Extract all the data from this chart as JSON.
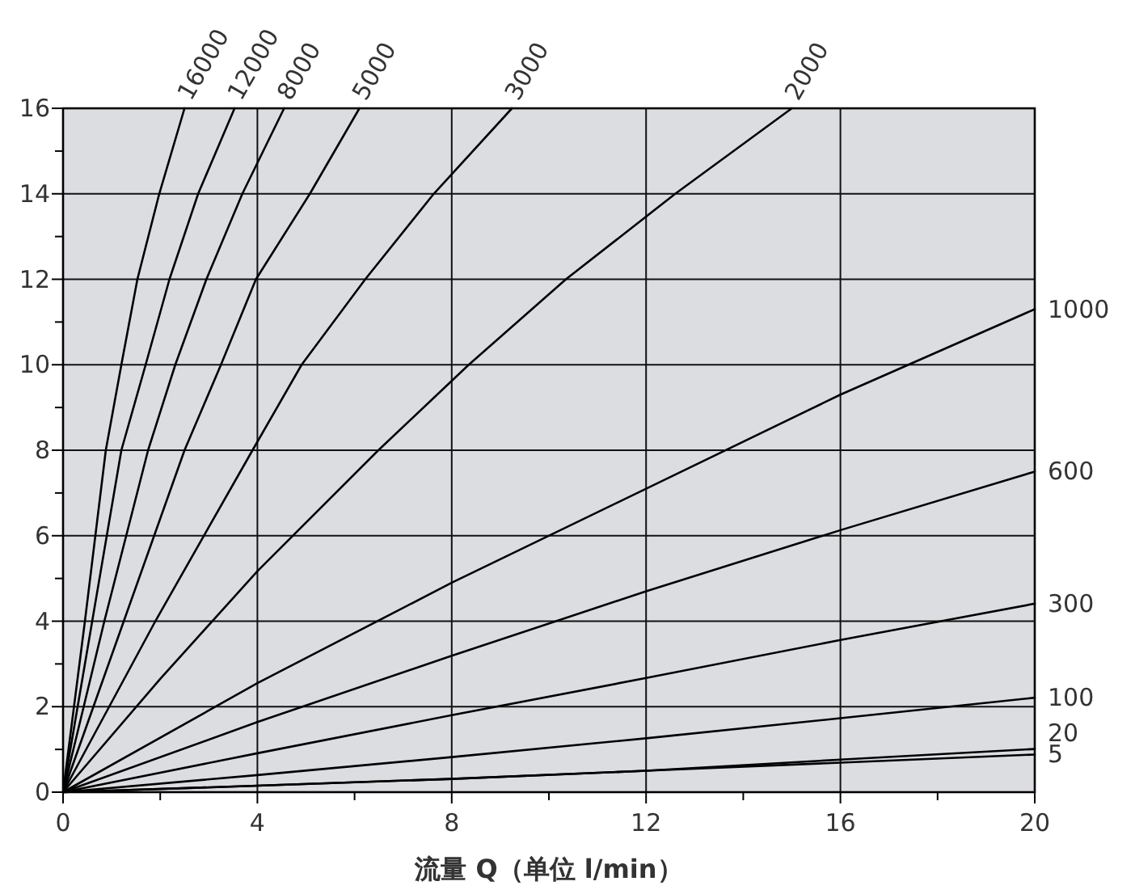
{
  "chart_data": {
    "type": "line",
    "xlabel": "流量 Q（单位 l/min）",
    "xlim": [
      0,
      20
    ],
    "ylim": [
      0,
      16
    ],
    "xticks": [
      0,
      {
        "value": 2,
        "label": null
      },
      4,
      {
        "value": 6,
        "label": null
      },
      8,
      {
        "value": 10,
        "label": null
      },
      12,
      {
        "value": 14,
        "label": null
      },
      16,
      {
        "value": 18,
        "label": null
      },
      20
    ],
    "yticks": [
      0,
      {
        "value": 1,
        "label": null
      },
      2,
      {
        "value": 3,
        "label": null
      },
      4,
      {
        "value": 5,
        "label": null
      },
      6,
      {
        "value": 7,
        "label": null
      },
      8,
      {
        "value": 9,
        "label": null
      },
      10,
      {
        "value": 11,
        "label": null
      },
      12,
      {
        "value": 13,
        "label": null
      },
      14,
      {
        "value": 15,
        "label": null
      },
      16
    ],
    "grid": true,
    "marker": "none",
    "line_style": "solid",
    "series": [
      {
        "name": "16000",
        "color": "#000000",
        "x": [
          0,
          0.45,
          0.88,
          1.2,
          1.53,
          1.98,
          2.5
        ],
        "values": [
          0,
          4,
          8,
          10,
          12,
          14,
          16
        ]
      },
      {
        "name": "12000",
        "color": "#000000",
        "x": [
          0,
          0.6,
          1.2,
          1.7,
          2.19,
          2.78,
          3.53
        ],
        "values": [
          0,
          4,
          8,
          10,
          12,
          14,
          16
        ]
      },
      {
        "name": "8000",
        "color": "#000000",
        "x": [
          0,
          0.85,
          1.75,
          2.31,
          2.95,
          3.69,
          4.55
        ],
        "values": [
          0,
          4,
          8,
          10,
          12,
          14,
          16
        ]
      },
      {
        "name": "5000",
        "color": "#000000",
        "x": [
          0,
          1.25,
          2.5,
          3.25,
          3.97,
          5.08,
          6.1
        ],
        "values": [
          0,
          4,
          8,
          10,
          12,
          14,
          16
        ]
      },
      {
        "name": "3000",
        "color": "#000000",
        "x": [
          0,
          1.9,
          3.9,
          4.91,
          6.22,
          7.63,
          9.24
        ],
        "values": [
          0,
          4,
          8,
          10,
          12,
          14,
          16
        ]
      },
      {
        "name": "2000",
        "color": "#000000",
        "x": [
          0,
          2,
          4,
          6.49,
          8.35,
          10.35,
          12.6,
          15
        ],
        "values": [
          0,
          2.65,
          5.17,
          8,
          10,
          12,
          14,
          16
        ]
      },
      {
        "name": "1000",
        "color": "#000000",
        "x": [
          0,
          4,
          8,
          12,
          16,
          20
        ],
        "values": [
          0,
          2.55,
          4.9,
          7.1,
          9.3,
          11.3
        ]
      },
      {
        "name": "600",
        "color": "#000000",
        "x": [
          0,
          4,
          8,
          12,
          16,
          20
        ],
        "values": [
          0,
          1.64,
          3.19,
          4.7,
          6.13,
          7.5
        ]
      },
      {
        "name": "300",
        "color": "#000000",
        "x": [
          0,
          4,
          8,
          12,
          16,
          20
        ],
        "values": [
          0,
          0.91,
          1.8,
          2.67,
          3.56,
          4.41
        ]
      },
      {
        "name": "100",
        "color": "#000000",
        "x": [
          0,
          4,
          8,
          12,
          16,
          20
        ],
        "values": [
          0,
          0.4,
          0.82,
          1.26,
          1.73,
          2.21
        ]
      },
      {
        "name": "20",
        "color": "#000000",
        "x": [
          0,
          4,
          8,
          12,
          16,
          20
        ],
        "values": [
          0,
          0.15,
          0.31,
          0.5,
          0.76,
          1.01
        ]
      },
      {
        "name": "5",
        "color": "#000000",
        "x": [
          0,
          4,
          8,
          12,
          16,
          20
        ],
        "values": [
          0,
          0.15,
          0.31,
          0.5,
          0.69,
          0.88
        ]
      }
    ]
  }
}
